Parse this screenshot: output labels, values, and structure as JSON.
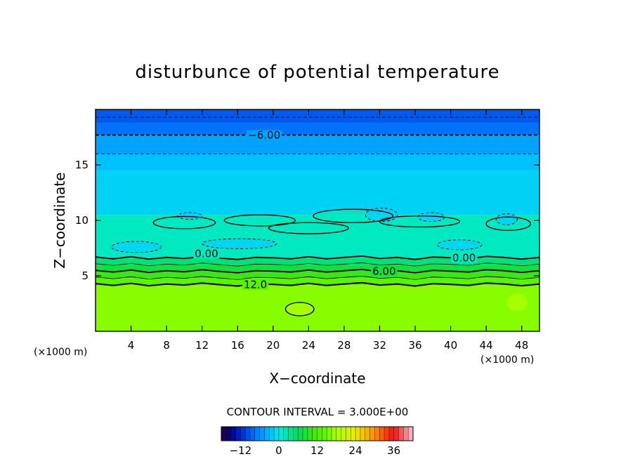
{
  "chart_data": {
    "type": "contour",
    "title": "disturbunce of potential temperature",
    "xlabel": "X−coordinate",
    "ylabel": "Z−coordinate",
    "x_unit": "(×1000 m)",
    "y_unit": "(×1000 m)",
    "xlim": [
      0,
      50
    ],
    "ylim": [
      0,
      20
    ],
    "x_ticks": [
      4,
      8,
      12,
      16,
      20,
      24,
      28,
      32,
      36,
      40,
      44,
      48
    ],
    "y_ticks": [
      5,
      10,
      15
    ],
    "contour_interval_label": "CONTOUR INTERVAL = 3.000E+00",
    "contour_labels": [
      {
        "text": "−6.00",
        "x": 19,
        "z": 17.7
      },
      {
        "text": "0.00",
        "x": 12.5,
        "z": 7.0
      },
      {
        "text": "0.00",
        "x": 41.5,
        "z": 6.6
      },
      {
        "text": "6.00",
        "x": 32.5,
        "z": 5.4
      },
      {
        "text": "12.0",
        "x": 18,
        "z": 4.2
      }
    ],
    "layers": [
      {
        "z_bottom": 0,
        "z_top": 4.2,
        "value": 16.5
      },
      {
        "z_bottom": 4.2,
        "z_top": 4.8,
        "value": 13.5
      },
      {
        "z_bottom": 4.8,
        "z_top": 5.4,
        "value": 10.5
      },
      {
        "z_bottom": 5.4,
        "z_top": 6.0,
        "value": 7.5
      },
      {
        "z_bottom": 6.0,
        "z_top": 6.6,
        "value": 4.5
      },
      {
        "z_bottom": 6.6,
        "z_top": 10.5,
        "value": 1.5
      },
      {
        "z_bottom": 10.5,
        "z_top": 14.5,
        "value": -1.5
      },
      {
        "z_bottom": 14.5,
        "z_top": 16.0,
        "value": -2.5
      },
      {
        "z_bottom": 16.0,
        "z_top": 17.7,
        "value": -4.5
      },
      {
        "z_bottom": 17.7,
        "z_top": 18.8,
        "value": -7.5
      },
      {
        "z_bottom": 18.8,
        "z_top": 20,
        "value": -9.0
      }
    ],
    "colorbar": {
      "min": -18,
      "max": 42,
      "tick_labels": [
        "−12",
        "0",
        "12",
        "24",
        "36"
      ],
      "tick_values": [
        -12,
        0,
        12,
        24,
        36
      ]
    }
  }
}
